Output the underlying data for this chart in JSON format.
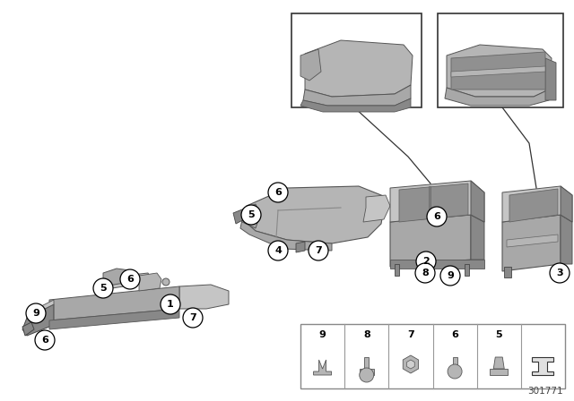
{
  "background_color": "#ffffff",
  "diagram_number": "301771",
  "part_color": "#a8a8a8",
  "part_dark": "#888888",
  "part_light": "#c0c0c0",
  "part_mid": "#b0b0b0"
}
